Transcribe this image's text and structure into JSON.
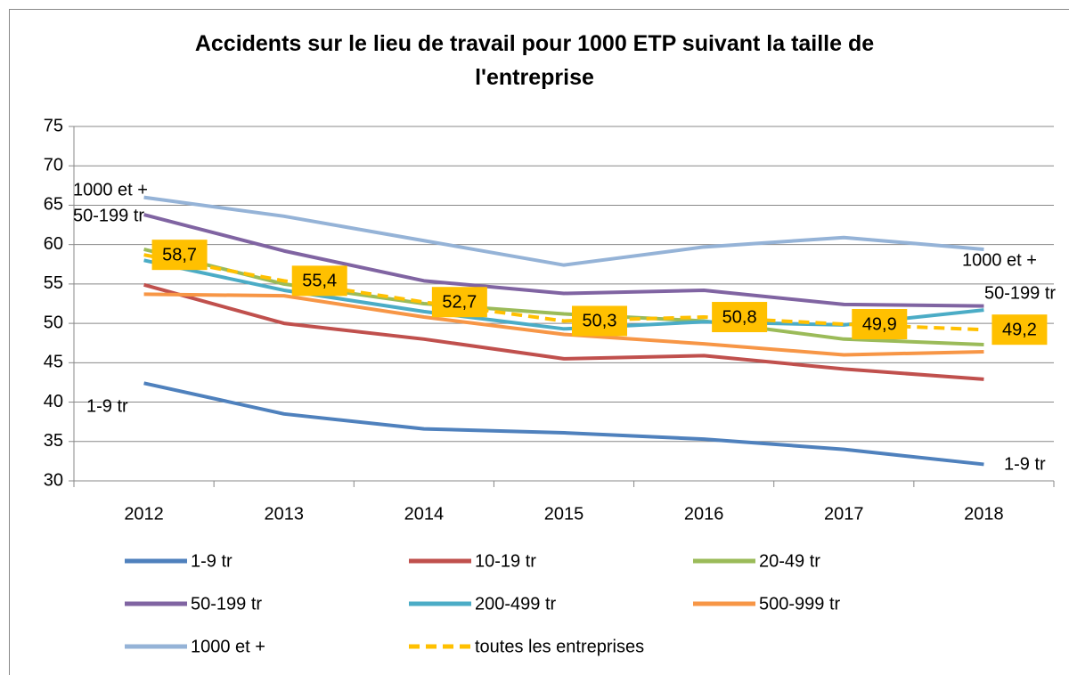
{
  "chart_data": {
    "type": "line",
    "title": "Accidents sur le lieu de travail pour 1000 ETP suivant la taille de l'entreprise",
    "categories": [
      "2012",
      "2013",
      "2014",
      "2015",
      "2016",
      "2017",
      "2018"
    ],
    "series": [
      {
        "name": "1-9 tr",
        "color": "#4f81bd",
        "values": [
          42.4,
          38.5,
          36.6,
          36.1,
          35.3,
          34.0,
          32.1
        ]
      },
      {
        "name": "10-19 tr",
        "color": "#c0504d",
        "values": [
          54.9,
          50.0,
          48.0,
          45.5,
          45.9,
          44.2,
          42.9
        ]
      },
      {
        "name": "20-49 tr",
        "color": "#9bbb59",
        "values": [
          59.4,
          55.0,
          52.5,
          51.2,
          50.3,
          48.0,
          47.3
        ]
      },
      {
        "name": "50-199 tr",
        "color": "#8064a2",
        "values": [
          63.8,
          59.2,
          55.4,
          53.8,
          54.2,
          52.4,
          52.2
        ]
      },
      {
        "name": "200-499 tr",
        "color": "#4bacc6",
        "values": [
          58.0,
          54.2,
          51.5,
          49.3,
          50.2,
          49.8,
          51.7
        ]
      },
      {
        "name": "500-999 tr",
        "color": "#f79646",
        "values": [
          53.7,
          53.5,
          50.8,
          48.6,
          47.4,
          46.0,
          46.4
        ]
      },
      {
        "name": "1000 et +",
        "color": "#95b3d7",
        "values": [
          66.0,
          63.6,
          60.5,
          57.4,
          59.7,
          60.9,
          59.4
        ]
      },
      {
        "name": "toutes les entreprises",
        "color": "#ffc000",
        "dashed": true,
        "values": [
          58.7,
          55.4,
          52.7,
          50.3,
          50.8,
          49.9,
          49.2
        ],
        "value_labels": [
          "58,7",
          "55,4",
          "52,7",
          "50,3",
          "50,8",
          "49,9",
          "49,2"
        ]
      }
    ],
    "annotations": [
      "1000 et +",
      "50-199 tr",
      "1-9 tr",
      "1000 et +",
      "50-199 tr",
      "1-9 tr"
    ],
    "ylim": [
      30,
      75
    ],
    "yticks": [
      30,
      35,
      40,
      45,
      50,
      55,
      60,
      65,
      70,
      75
    ],
    "grid": true
  }
}
